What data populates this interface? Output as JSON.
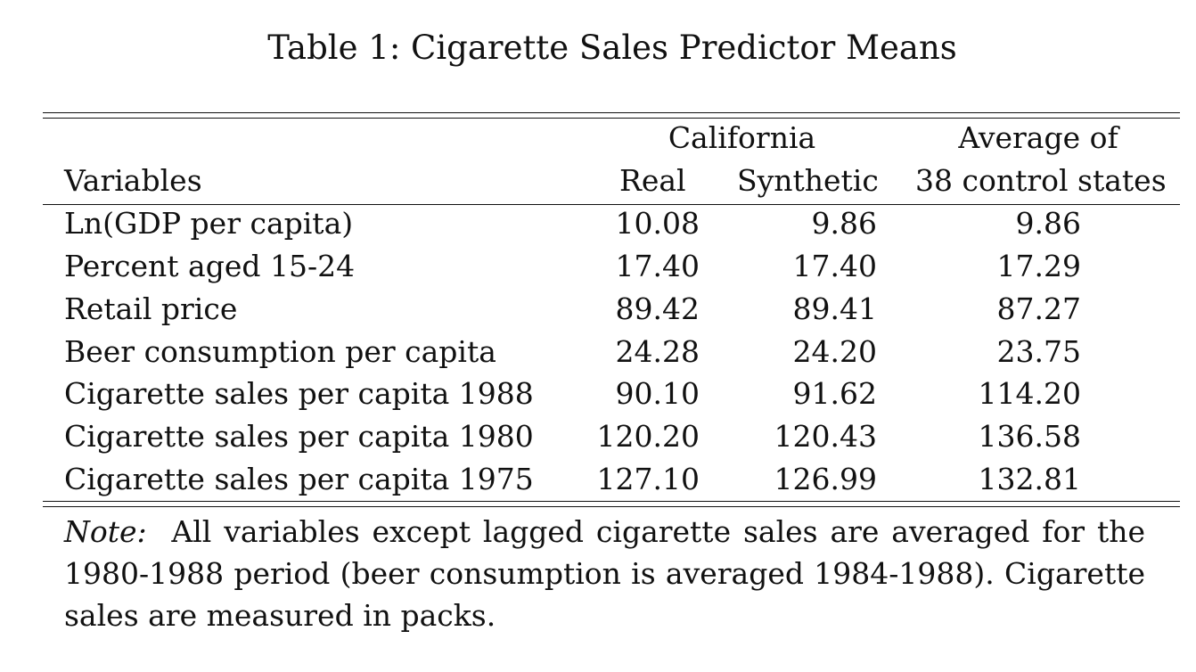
{
  "caption": "Table 1: Cigarette Sales Predictor Means",
  "header": {
    "group_california": "California",
    "group_average_line1": "Average of",
    "variables": "Variables",
    "real": "Real",
    "synthetic": "Synthetic",
    "average_line2": "38 control states"
  },
  "rows": [
    {
      "label": "Ln(GDP per capita)",
      "real": "10.08",
      "synthetic": "9.86",
      "average": "9.86"
    },
    {
      "label": "Percent aged 15-24",
      "real": "17.40",
      "synthetic": "17.40",
      "average": "17.29"
    },
    {
      "label": "Retail price",
      "real": "89.42",
      "synthetic": "89.41",
      "average": "87.27"
    },
    {
      "label": "Beer consumption per capita",
      "real": "24.28",
      "synthetic": "24.20",
      "average": "23.75"
    },
    {
      "label": "Cigarette sales per capita 1988",
      "real": "90.10",
      "synthetic": "91.62",
      "average": "114.20"
    },
    {
      "label": "Cigarette sales per capita 1980",
      "real": "120.20",
      "synthetic": "120.43",
      "average": "136.58"
    },
    {
      "label": "Cigarette sales per capita 1975",
      "real": "127.10",
      "synthetic": "126.99",
      "average": "132.81"
    }
  ],
  "note": {
    "label": "Note:",
    "text": "All variables except lagged cigarette sales are averaged for the 1980-1988 period (beer consumption is averaged 1984-1988). Cigarette sales are measured in packs."
  }
}
